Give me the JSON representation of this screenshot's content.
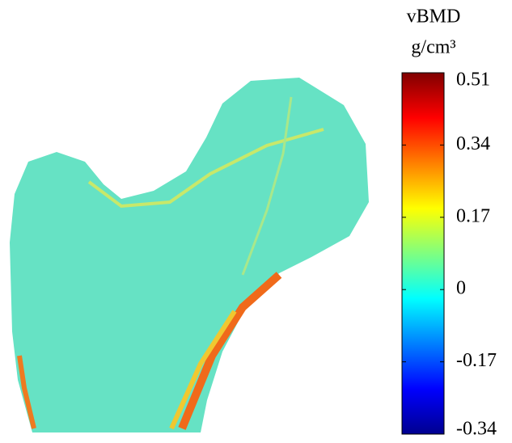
{
  "colorbar": {
    "title": "vBMD",
    "unit": "g/cm³",
    "range": [
      -0.34,
      0.51
    ],
    "ticks": [
      0.51,
      0.34,
      0.17,
      0,
      -0.17,
      -0.34
    ]
  }
}
